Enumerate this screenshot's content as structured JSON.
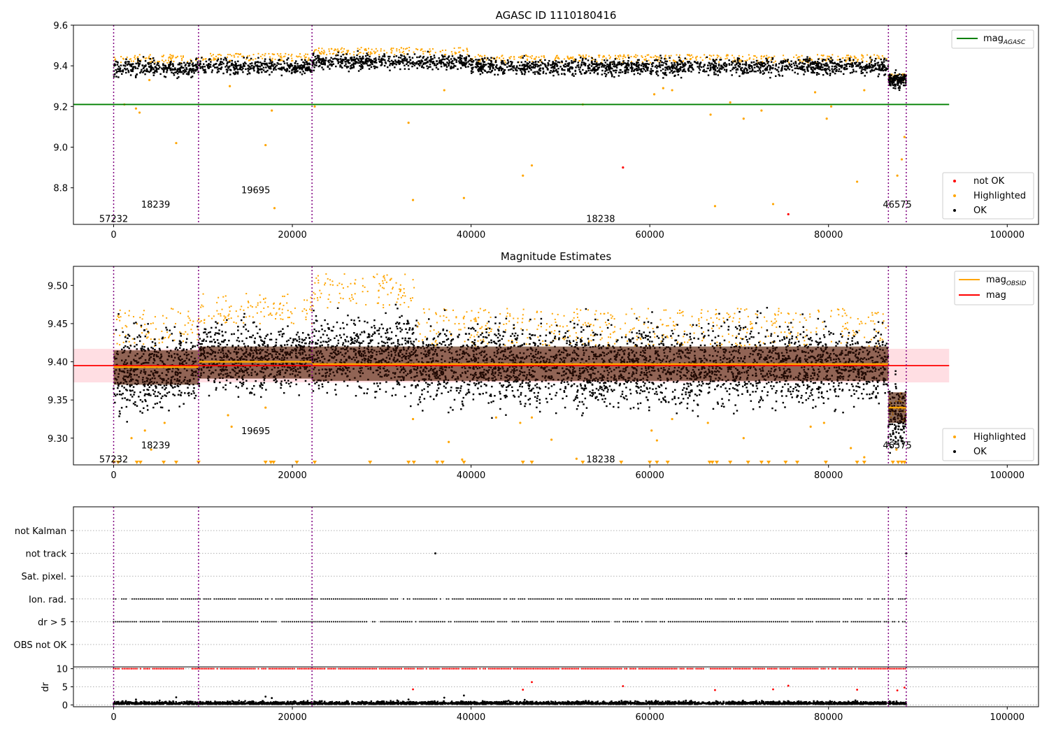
{
  "chart_data": [
    {
      "type": "scatter",
      "title": "AGASC ID 1110180416",
      "xlabel": "",
      "ylabel": "",
      "xlim": [
        -4500,
        103500
      ],
      "ylim": [
        8.62,
        9.6
      ],
      "yticks": [
        8.8,
        9.0,
        9.2,
        9.4,
        9.6
      ],
      "ytick_labels": [
        "8.8",
        "9.0",
        "9.2",
        "9.4",
        "9.6"
      ],
      "xticks": [
        0,
        20000,
        40000,
        60000,
        80000,
        100000
      ],
      "xtick_labels": [
        "0",
        "20000",
        "40000",
        "60000",
        "80000",
        "100000"
      ],
      "reference_line": {
        "name": "mag_AGASC",
        "y": 9.21,
        "x": [
          -4500,
          93500
        ],
        "color": "#008000"
      },
      "obsid_boundaries": [
        0,
        9500,
        22200,
        86700,
        88700
      ],
      "obsid_labels": [
        {
          "text": "57232",
          "x": 0,
          "y": 8.65
        },
        {
          "text": "18239",
          "x": 4700,
          "y": 8.72
        },
        {
          "text": "19695",
          "x": 15900,
          "y": 8.79
        },
        {
          "text": "18238",
          "x": 54500,
          "y": 8.65
        },
        {
          "text": "46575",
          "x": 87700,
          "y": 8.72
        }
      ],
      "segments": [
        {
          "x": [
            0,
            9500
          ],
          "center": 9.39,
          "spread": 0.045,
          "highlight_top": 9.455
        },
        {
          "x": [
            9500,
            22200
          ],
          "center": 9.395,
          "spread": 0.04,
          "highlight_top": 9.46
        },
        {
          "x": [
            22200,
            40000
          ],
          "center": 9.42,
          "spread": 0.04,
          "highlight_top": 9.49
        },
        {
          "x": [
            40000,
            86700
          ],
          "center": 9.395,
          "spread": 0.045,
          "highlight_top": 9.455
        },
        {
          "x": [
            86700,
            88700
          ],
          "center": 9.33,
          "spread": 0.04,
          "highlight_top": 9.36
        }
      ],
      "series": [
        {
          "name": "not OK",
          "color": "#ff0000",
          "points": [
            [
              57000,
              8.9
            ],
            [
              75500,
              8.67
            ]
          ]
        },
        {
          "name": "Highlighted",
          "color": "#ffa500",
          "points": [
            [
              1200,
              9.21
            ],
            [
              2500,
              9.19
            ],
            [
              2900,
              9.17
            ],
            [
              4000,
              9.33
            ],
            [
              7000,
              9.02
            ],
            [
              13000,
              9.3
            ],
            [
              17000,
              9.01
            ],
            [
              17700,
              9.18
            ],
            [
              18000,
              8.7
            ],
            [
              22500,
              9.2
            ],
            [
              33000,
              9.12
            ],
            [
              33500,
              8.74
            ],
            [
              37000,
              9.28
            ],
            [
              39200,
              8.75
            ],
            [
              45800,
              8.86
            ],
            [
              46800,
              8.91
            ],
            [
              52500,
              9.21
            ],
            [
              60500,
              9.26
            ],
            [
              61500,
              9.29
            ],
            [
              62500,
              9.28
            ],
            [
              66800,
              9.16
            ],
            [
              67300,
              8.71
            ],
            [
              69000,
              9.22
            ],
            [
              70500,
              9.14
            ],
            [
              72500,
              9.18
            ],
            [
              73800,
              8.72
            ],
            [
              78500,
              9.27
            ],
            [
              79800,
              9.14
            ],
            [
              80300,
              9.2
            ],
            [
              83200,
              8.83
            ],
            [
              84000,
              9.28
            ],
            [
              87700,
              8.86
            ],
            [
              88200,
              8.94
            ],
            [
              88500,
              9.05
            ]
          ]
        },
        {
          "name": "OK",
          "color": "#000000",
          "points": []
        }
      ],
      "legend": {
        "position": "bottom-right",
        "entries": [
          "not OK",
          "Highlighted",
          "OK"
        ]
      },
      "legend_top": {
        "position": "top-right",
        "entries": [
          "mag_AGASC"
        ]
      }
    },
    {
      "type": "scatter",
      "title": "Magnitude Estimates",
      "xlabel": "",
      "ylabel": "",
      "xlim": [
        -4500,
        103500
      ],
      "ylim": [
        9.265,
        9.525
      ],
      "yticks": [
        9.3,
        9.35,
        9.4,
        9.45,
        9.5
      ],
      "ytick_labels": [
        "9.30",
        "9.35",
        "9.40",
        "9.45",
        "9.50"
      ],
      "xticks": [
        0,
        20000,
        40000,
        60000,
        80000,
        100000
      ],
      "xtick_labels": [
        "0",
        "20000",
        "40000",
        "60000",
        "80000",
        "100000"
      ],
      "mag_line": {
        "name": "mag",
        "y": 9.395,
        "band": [
          9.373,
          9.417
        ],
        "x": [
          -4500,
          93500
        ],
        "color": "#ff0000"
      },
      "mag_obsid": [
        {
          "x": [
            0,
            9500
          ],
          "y": 9.393,
          "band": [
            9.37,
            9.415
          ]
        },
        {
          "x": [
            9500,
            22200
          ],
          "y": 9.4,
          "band": [
            9.378,
            9.42
          ]
        },
        {
          "x": [
            22200,
            86700
          ],
          "y": 9.397,
          "band": [
            9.375,
            9.42
          ]
        },
        {
          "x": [
            86700,
            88700
          ],
          "y": 9.34,
          "band": [
            9.32,
            9.36
          ]
        }
      ],
      "obsid_boundaries": [
        0,
        9500,
        22200,
        86700,
        88700
      ],
      "obsid_labels": [
        {
          "text": "57232",
          "x": 0,
          "y": 9.273
        },
        {
          "text": "18239",
          "x": 4700,
          "y": 9.291
        },
        {
          "text": "19695",
          "x": 15900,
          "y": 9.31
        },
        {
          "text": "18238",
          "x": 54500,
          "y": 9.273
        },
        {
          "text": "46575",
          "x": 87700,
          "y": 9.291
        }
      ],
      "segments": [
        {
          "x": [
            0,
            9500
          ],
          "center": 9.39,
          "spread": 0.055,
          "highlight_top": 9.47
        },
        {
          "x": [
            9500,
            22200
          ],
          "center": 9.405,
          "spread": 0.045,
          "highlight_top": 9.49
        },
        {
          "x": [
            22200,
            34000
          ],
          "center": 9.41,
          "spread": 0.05,
          "highlight_top": 9.515
        },
        {
          "x": [
            34000,
            86700
          ],
          "center": 9.395,
          "spread": 0.055,
          "highlight_top": 9.47
        },
        {
          "x": [
            86700,
            88700
          ],
          "center": 9.33,
          "spread": 0.045,
          "highlight_top": 9.36
        }
      ],
      "series": [
        {
          "name": "Highlighted",
          "color": "#ffa500",
          "points": [
            [
              2000,
              9.3
            ],
            [
              3500,
              9.31
            ],
            [
              4200,
              9.285
            ],
            [
              5700,
              9.32
            ],
            [
              12800,
              9.33
            ],
            [
              13200,
              9.315
            ],
            [
              17000,
              9.34
            ],
            [
              33500,
              9.325
            ],
            [
              37500,
              9.295
            ],
            [
              39000,
              9.272
            ],
            [
              42800,
              9.327
            ],
            [
              45500,
              9.32
            ],
            [
              46800,
              9.327
            ],
            [
              49000,
              9.298
            ],
            [
              51800,
              9.273
            ],
            [
              60200,
              9.31
            ],
            [
              60800,
              9.297
            ],
            [
              62500,
              9.325
            ],
            [
              66500,
              9.32
            ],
            [
              70500,
              9.3
            ],
            [
              78000,
              9.315
            ],
            [
              79500,
              9.32
            ],
            [
              82500,
              9.287
            ],
            [
              84000,
              9.275
            ],
            [
              87600,
              9.285
            ]
          ]
        },
        {
          "name": "OK",
          "color": "#000000",
          "points": []
        }
      ],
      "floor_markers": [
        0,
        500,
        2600,
        3000,
        5600,
        7000,
        9500,
        17000,
        17600,
        17900,
        20500,
        22500,
        28700,
        33000,
        33600,
        36200,
        36800,
        39200,
        45800,
        46800,
        52500,
        56800,
        60000,
        60800,
        62000,
        66700,
        67000,
        67500,
        69000,
        71000,
        72500,
        73300,
        75200,
        76500,
        79700,
        83200,
        84000,
        87200,
        87800,
        88200,
        88500
      ],
      "legend": {
        "position": "bottom-right",
        "entries": [
          "Highlighted",
          "OK"
        ]
      },
      "legend_top": {
        "position": "top-right",
        "entries": [
          "mag_OBSID",
          "mag"
        ]
      }
    },
    {
      "type": "scatter",
      "title": "",
      "xlim": [
        -4500,
        103500
      ],
      "flag_rows": [
        "not Kalman",
        "not track",
        "Sat. pixel.",
        "Ion. rad.",
        "dr > 5",
        "OBS not OK"
      ],
      "flag_points": {
        "not track": [
          36000,
          88700
        ],
        "Ion. rad.": "dense 0-88700",
        "dr > 5": "dense 0-88700"
      },
      "obsid_boundaries": [
        0,
        9500,
        22200,
        86700,
        88700
      ]
    },
    {
      "type": "scatter",
      "title": "",
      "xlabel": "",
      "ylabel": "dr",
      "xlim": [
        -4500,
        103500
      ],
      "ylim": [
        -0.5,
        10.5
      ],
      "yticks": [
        0,
        5,
        10
      ],
      "ytick_labels": [
        "0",
        "5",
        "10"
      ],
      "xticks": [
        0,
        20000,
        40000,
        60000,
        80000,
        100000
      ],
      "xtick_labels": [
        "0",
        "20000",
        "40000",
        "60000",
        "80000",
        "100000"
      ],
      "series": [
        {
          "name": "dr > 5",
          "color": "#ff0000",
          "points": [
            [
              33500,
              4.3
            ],
            [
              45800,
              4.2
            ],
            [
              46800,
              6.3
            ],
            [
              57000,
              5.2
            ],
            [
              67300,
              4.1
            ],
            [
              73800,
              4.3
            ],
            [
              75500,
              5.3
            ],
            [
              83200,
              4.2
            ],
            [
              87700,
              4.0
            ],
            [
              88500,
              4.8
            ]
          ]
        },
        {
          "name": "OK",
          "color": "#000000",
          "points": [
            [
              2500,
              1.5
            ],
            [
              7000,
              2.1
            ],
            [
              17000,
              2.3
            ],
            [
              17700,
              1.9
            ],
            [
              33000,
              1.5
            ],
            [
              37000,
              2.0
            ],
            [
              39200,
              2.6
            ],
            [
              46000,
              1.4
            ]
          ]
        }
      ],
      "clipped_level": 10,
      "obsid_boundaries": [
        0,
        9500,
        22200,
        86700,
        88700
      ]
    }
  ]
}
